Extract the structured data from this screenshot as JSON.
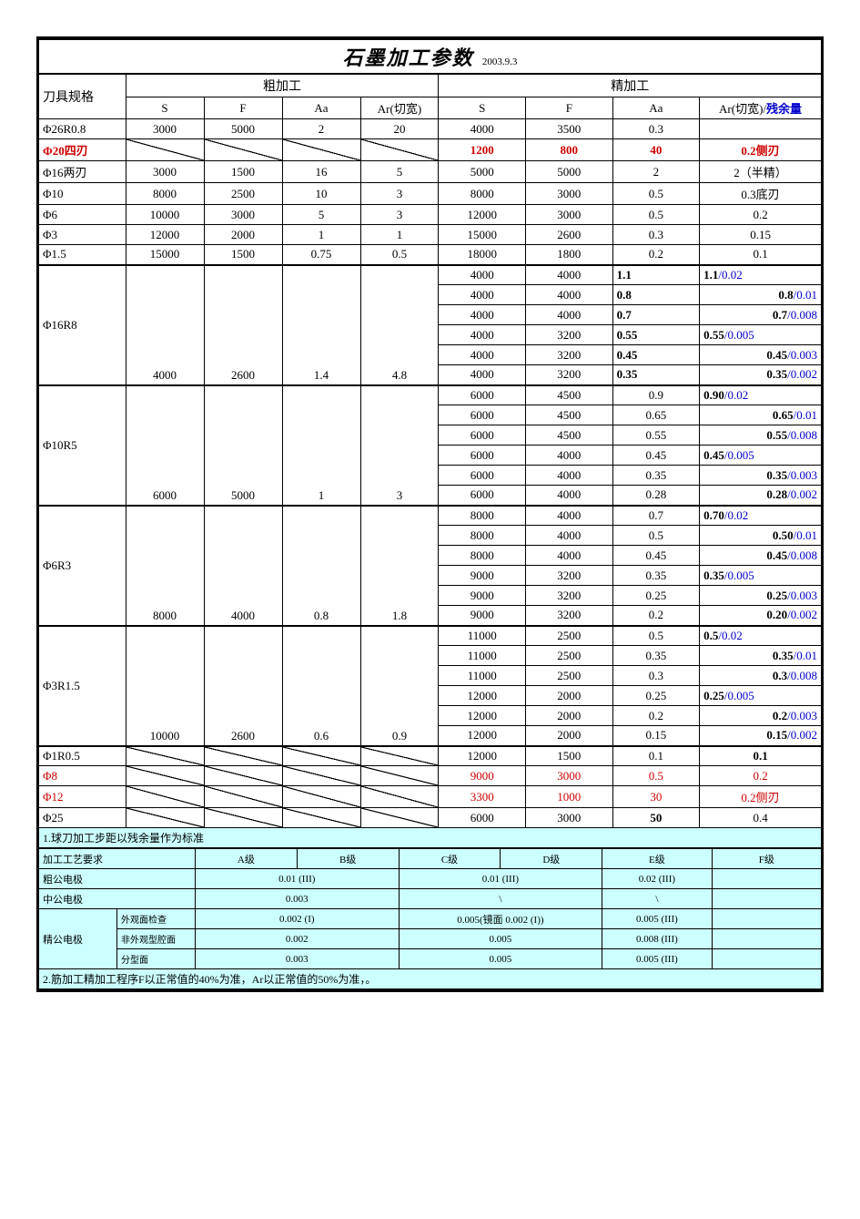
{
  "title": "石墨加工参数",
  "title_date": "2003.9.3",
  "columns": {
    "tool": "刀具规格",
    "rough": "粗加工",
    "finish": "精加工",
    "S": "S",
    "F": "F",
    "Aa": "Aa",
    "Ar_rough": "Ar(切宽)",
    "Ar_finish_prefix": "Ar(切宽)/",
    "Ar_finish_suffix": "残余量"
  },
  "simple_rows": [
    {
      "tool": "Φ26R0.8",
      "rS": "3000",
      "rF": "5000",
      "rAa": "2",
      "rAr": "20",
      "fS": "4000",
      "fF": "3500",
      "fAa": "0.3",
      "fAr": "",
      "red": false
    },
    {
      "tool": "Φ20四刃",
      "slash": true,
      "fS": "1200",
      "fF": "800",
      "fAa": "40",
      "fAr": "0.2侧刃",
      "red": true,
      "boldTool": true
    },
    {
      "tool": "Φ16两刃",
      "rS": "3000",
      "rF": "1500",
      "rAa": "16",
      "rAr": "5",
      "fS": "5000",
      "fF": "5000",
      "fAa": "2",
      "fAr": "2（半精）",
      "red": false
    },
    {
      "tool": "Φ10",
      "rS": "8000",
      "rF": "2500",
      "rAa": "10",
      "rAr": "3",
      "fS": "8000",
      "fF": "3000",
      "fAa": "0.5",
      "fAr": "0.3底刃",
      "red": false
    },
    {
      "tool": "Φ6",
      "rS": "10000",
      "rF": "3000",
      "rAa": "5",
      "rAr": "3",
      "fS": "12000",
      "fF": "3000",
      "fAa": "0.5",
      "fAr": "0.2",
      "red": false
    },
    {
      "tool": "Φ3",
      "rS": "12000",
      "rF": "2000",
      "rAa": "1",
      "rAr": "1",
      "fS": "15000",
      "fF": "2600",
      "fAa": "0.3",
      "fAr": "0.15",
      "red": false
    },
    {
      "tool": "Φ1.5",
      "rS": "15000",
      "rF": "1500",
      "rAa": "0.75",
      "rAr": "0.5",
      "fS": "18000",
      "fF": "1800",
      "fAa": "0.2",
      "fAr": "0.1",
      "red": false
    }
  ],
  "groups": [
    {
      "tool": "Φ16R8",
      "rough": {
        "S": "4000",
        "F": "2600",
        "Aa": "1.4",
        "Ar": "4.8"
      },
      "rows": [
        {
          "S": "4000",
          "F": "4000",
          "Aa": "1.1",
          "b": "1.1",
          "d": "/0.02",
          "AaBold": true,
          "ArLeft": true
        },
        {
          "S": "4000",
          "F": "4000",
          "Aa": "0.8",
          "b": "0.8",
          "d": "/0.01",
          "AaBold": true
        },
        {
          "S": "4000",
          "F": "4000",
          "Aa": "0.7",
          "b": "0.7",
          "d": "/0.008",
          "AaBold": true
        },
        {
          "S": "4000",
          "F": "3200",
          "Aa": "0.55",
          "b": "0.55",
          "d": "/0.005",
          "AaBold": true,
          "ArLeft": true
        },
        {
          "S": "4000",
          "F": "3200",
          "Aa": "0.45",
          "b": "0.45",
          "d": "/0.003",
          "AaBold": true
        },
        {
          "S": "4000",
          "F": "3200",
          "Aa": "0.35",
          "b": "0.35",
          "d": "/0.002",
          "AaBold": true
        }
      ]
    },
    {
      "tool": "Φ10R5",
      "rough": {
        "S": "6000",
        "F": "5000",
        "Aa": "1",
        "Ar": "3"
      },
      "rows": [
        {
          "S": "6000",
          "F": "4500",
          "Aa": "0.9",
          "b": "0.90",
          "d": "/0.02",
          "ArLeft": true
        },
        {
          "S": "6000",
          "F": "4500",
          "Aa": "0.65",
          "b": "0.65",
          "d": "/0.01"
        },
        {
          "S": "6000",
          "F": "4500",
          "Aa": "0.55",
          "b": "0.55",
          "d": "/0.008"
        },
        {
          "S": "6000",
          "F": "4000",
          "Aa": "0.45",
          "b": "0.45",
          "d": "/0.005",
          "ArLeft": true
        },
        {
          "S": "6000",
          "F": "4000",
          "Aa": "0.35",
          "b": "0.35",
          "d": "/0.003"
        },
        {
          "S": "6000",
          "F": "4000",
          "Aa": "0.28",
          "b": "0.28",
          "d": "/0.002"
        }
      ]
    },
    {
      "tool": "Φ6R3",
      "rough": {
        "S": "8000",
        "F": "4000",
        "Aa": "0.8",
        "Ar": "1.8"
      },
      "rows": [
        {
          "S": "8000",
          "F": "4000",
          "Aa": "0.7",
          "b": "0.70",
          "d": "/0.02",
          "ArLeft": true
        },
        {
          "S": "8000",
          "F": "4000",
          "Aa": "0.5",
          "b": "0.50",
          "d": "/0.01"
        },
        {
          "S": "8000",
          "F": "4000",
          "Aa": "0.45",
          "b": "0.45",
          "d": "/0.008"
        },
        {
          "S": "9000",
          "F": "3200",
          "Aa": "0.35",
          "b": "0.35",
          "d": "/0.005",
          "ArLeft": true
        },
        {
          "S": "9000",
          "F": "3200",
          "Aa": "0.25",
          "b": "0.25",
          "d": "/0.003"
        },
        {
          "S": "9000",
          "F": "3200",
          "Aa": "0.2",
          "b": "0.20",
          "d": "/0.002"
        }
      ]
    },
    {
      "tool": "Φ3R1.5",
      "rough": {
        "S": "10000",
        "F": "2600",
        "Aa": "0.6",
        "Ar": "0.9"
      },
      "rows": [
        {
          "S": "11000",
          "F": "2500",
          "Aa": "0.5",
          "b": "0.5",
          "d": "/0.02",
          "ArLeft": true
        },
        {
          "S": "11000",
          "F": "2500",
          "Aa": "0.35",
          "b": "0.35",
          "d": "/0.01"
        },
        {
          "S": "11000",
          "F": "2500",
          "Aa": "0.3",
          "b": "0.3",
          "d": "/0.008"
        },
        {
          "S": "12000",
          "F": "2000",
          "Aa": "0.25",
          "b": "0.25",
          "d": "/0.005",
          "ArLeft": true
        },
        {
          "S": "12000",
          "F": "2000",
          "Aa": "0.2",
          "b": "0.2",
          "d": "/0.003"
        },
        {
          "S": "12000",
          "F": "2000",
          "Aa": "0.15",
          "b": "0.15",
          "d": "/0.002"
        }
      ]
    }
  ],
  "tail_rows": [
    {
      "tool": "Φ1R0.5",
      "slash": true,
      "fS": "12000",
      "fF": "1500",
      "fAa": "0.1",
      "fAr": "0.1",
      "fArBold": true,
      "red": false
    },
    {
      "tool": "Φ8",
      "slash": true,
      "fS": "9000",
      "fF": "3000",
      "fAa": "0.5",
      "fAr": "0.2",
      "red": true,
      "toolRedOnly": true
    },
    {
      "tool": "Φ12",
      "slash": true,
      "fS": "3300",
      "fF": "1000",
      "fAa": "30",
      "fAr": "0.2侧刃",
      "red": true,
      "toolRedOnly": true
    },
    {
      "tool": "Φ25",
      "slash": true,
      "fS": "6000",
      "fF": "3000",
      "fAa": "50",
      "fAaBold": true,
      "fAr": "0.4",
      "red": false
    }
  ],
  "note1": "1.球刀加工步距以残余量作为标准",
  "grades_header": {
    "req": "加工工艺要求",
    "A": "A级",
    "B": "B级",
    "C": "C级",
    "D": "D级",
    "E": "E级",
    "F": "F级"
  },
  "electrodes": {
    "rough": {
      "label": "粗公电极",
      "AB": "0.01   (III)",
      "CD": "0.01   (III)",
      "E": "0.02   (III)",
      "F": ""
    },
    "mid": {
      "label": "中公电极",
      "AB": "0.003",
      "CD": "\\",
      "E": "\\",
      "F": ""
    },
    "fine": {
      "label": "精公电极",
      "rows": [
        {
          "sub": "外观面检查",
          "AB": "0.002   (I)",
          "CD": "0.005(镜面 0.002 (I))",
          "E": "0.005    (III)",
          "F": ""
        },
        {
          "sub": "非外观型腔面",
          "AB": "0.002",
          "CD": "0.005",
          "E": "0.008    (III)",
          "F": ""
        },
        {
          "sub": "分型面",
          "AB": "0.003",
          "CD": "0.005",
          "E": "0.005    (III)",
          "F": ""
        }
      ]
    }
  },
  "note2": "2.筋加工精加工程序F以正常值的40%为准，Ar以正常值的50%为准，。",
  "colors": {
    "red": "#cc0000",
    "blue": "#0000cc",
    "teal": "#ccffff"
  }
}
